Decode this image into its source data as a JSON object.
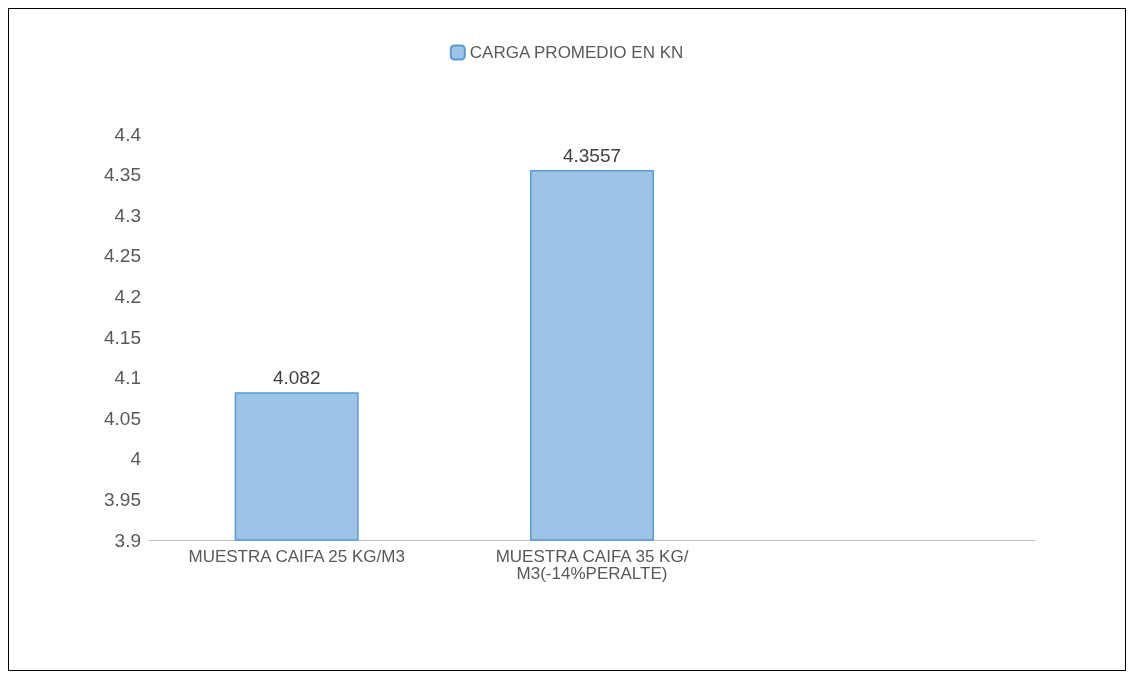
{
  "chart_data": {
    "type": "bar",
    "categories": [
      "MUESTRA CAIFA 25 KG/M3",
      "MUESTRA CAIFA 35 KG/M3(-14%PERALTE)",
      null
    ],
    "series": [
      {
        "name": "CARGA PROMEDIO EN KN",
        "color": "#9dc3e6",
        "values": [
          4.082,
          4.3557,
          null
        ]
      }
    ],
    "ylim": [
      3.9,
      4.4
    ],
    "yticks": [
      3.9,
      3.95,
      4,
      4.05,
      4.1,
      4.15,
      4.2,
      4.25,
      4.3,
      4.35,
      4.4
    ],
    "grid": false,
    "legend": "top",
    "data_labels": true
  }
}
